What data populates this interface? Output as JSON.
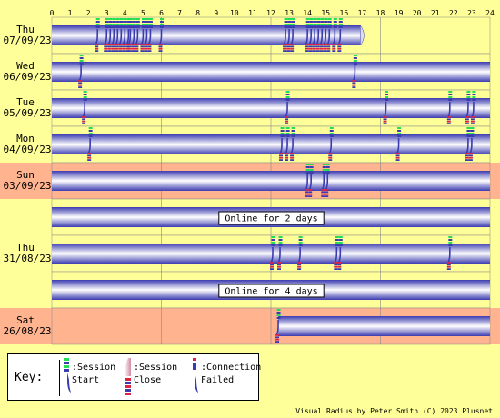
{
  "chart_data": {
    "type": "timeline",
    "x_ticks": [
      "0",
      "1",
      "2",
      "3",
      "4",
      "5",
      "6",
      "7",
      "8",
      "9",
      "10",
      "11",
      "12",
      "13",
      "14",
      "15",
      "16",
      "17",
      "18",
      "19",
      "20",
      "21",
      "22",
      "23",
      "24"
    ],
    "xlim": [
      0,
      24
    ],
    "days": [
      {
        "day": "Thu",
        "date": "07/09/23",
        "bg": "#ffff99",
        "session_bar": [
          0,
          16.9
        ],
        "bar_end": "open",
        "events": [
          2.5,
          3.0,
          3.2,
          3.4,
          3.6,
          3.8,
          4.0,
          4.2,
          4.3,
          4.5,
          4.7,
          5.0,
          5.2,
          5.4,
          6.0,
          12.8,
          13.0,
          13.2,
          14.0,
          14.2,
          14.4,
          14.6,
          14.8,
          15.0,
          15.2,
          15.5,
          15.8
        ]
      },
      {
        "day": "Wed",
        "date": "06/09/23",
        "bg": "#ffff99",
        "session_bar": [
          0,
          24
        ],
        "bar_end": "open",
        "events": [
          1.6,
          16.6
        ]
      },
      {
        "day": "Tue",
        "date": "05/09/23",
        "bg": "#ffff99",
        "session_bar": [
          0,
          24
        ],
        "bar_end": "open",
        "events": [
          1.8,
          12.9,
          18.3,
          21.8,
          22.8,
          23.1
        ]
      },
      {
        "day": "Mon",
        "date": "04/09/23",
        "bg": "#ffff99",
        "session_bar": [
          0,
          24
        ],
        "bar_end": "open",
        "events": [
          2.1,
          12.6,
          12.9,
          13.2,
          15.3,
          19.0,
          22.8,
          23.0
        ]
      },
      {
        "day": "Sun",
        "date": "03/09/23",
        "bg": "#ffb38f",
        "session_bar": [
          0,
          24
        ],
        "bar_end": "open",
        "events": [
          14.0,
          14.2,
          14.9,
          15.1
        ]
      },
      {
        "day": "",
        "date": "",
        "bg": "#ffff99",
        "session_bar": [
          0,
          24
        ],
        "bar_end": "open",
        "annotation": "Online for 2 days",
        "events": []
      },
      {
        "day": "Thu",
        "date": "31/08/23",
        "bg": "#ffff99",
        "session_bar": [
          0,
          24
        ],
        "bar_end": "open",
        "events": [
          12.1,
          12.5,
          13.6,
          15.6,
          15.8,
          21.8
        ]
      },
      {
        "day": "",
        "date": "",
        "bg": "#ffff99",
        "session_bar": [
          0,
          24
        ],
        "bar_end": "open",
        "annotation": "Online for 4 days",
        "events": []
      },
      {
        "day": "Sat",
        "date": "26/08/23",
        "bg": "#ffb38f",
        "session_bar": [
          12.4,
          24
        ],
        "bar_end": "open",
        "events": [
          12.4
        ]
      }
    ]
  },
  "legend": {
    "key_label": "Key:",
    "session_start": ":Session\nStart",
    "session_close": ":Session\nClose",
    "connection_failed": ":Connection\nFailed"
  },
  "footer": {
    "credit": "Visual Radius by Peter Smith (C) 2023 Plusnet"
  },
  "colors": {
    "page_bg": "#ffff99",
    "weekend_bg": "#ffb38f",
    "bar_dark": "#3b3bb0",
    "bar_light": "#ffffff",
    "start_green": "#22dd55",
    "close_red": "#dd2244",
    "grid": "#888888"
  }
}
